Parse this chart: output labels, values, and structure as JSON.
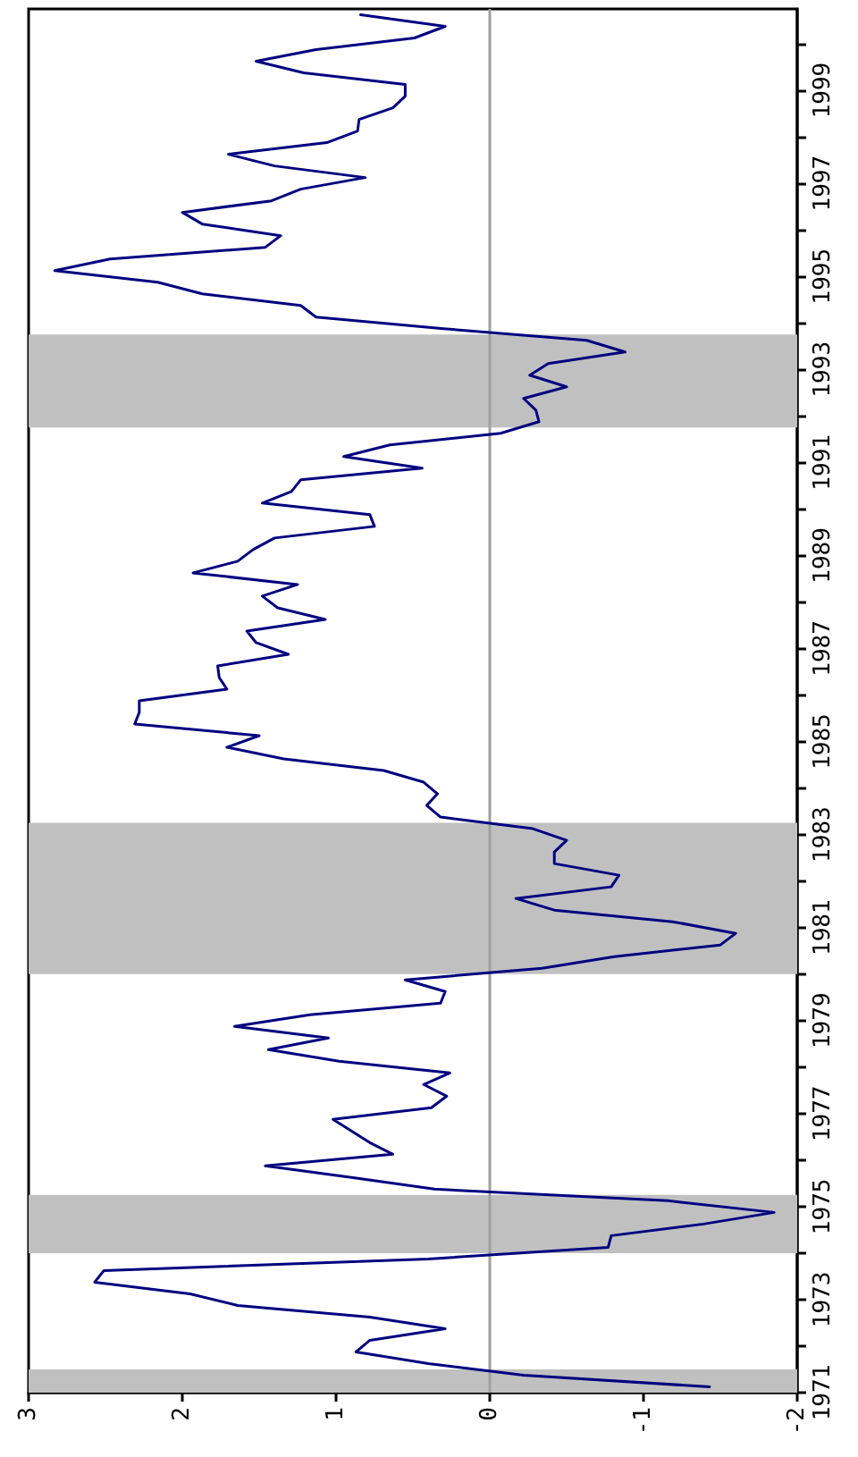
{
  "chart_data": {
    "type": "line",
    "series": [
      {
        "color": "#000080",
        "x": [
          -1.43,
          -0.22,
          0.4,
          0.87,
          0.78,
          0.29,
          0.78,
          1.64,
          1.95,
          2.57,
          2.51,
          0.4,
          -0.77,
          -0.79,
          -1.39,
          -1.85,
          -1.16,
          0.36,
          0.9,
          1.46,
          0.63,
          0.78,
          0.9,
          1.02,
          0.38,
          0.28,
          0.43,
          0.26,
          0.98,
          1.44,
          1.05,
          1.66,
          1.17,
          0.32,
          0.29,
          0.55,
          -0.34,
          -0.81,
          -1.5,
          -1.6,
          -1.19,
          -0.42,
          -0.17,
          -0.79,
          -0.84,
          -0.42,
          -0.42,
          -0.5,
          -0.28,
          0.32,
          0.41,
          0.34,
          0.43,
          0.69,
          1.34,
          1.71,
          1.5,
          2.31,
          2.28,
          2.28,
          1.71,
          1.76,
          1.77,
          1.31,
          1.52,
          1.58,
          1.07,
          1.38,
          1.48,
          1.25,
          1.93,
          1.64,
          1.54,
          1.4,
          0.75,
          0.78,
          1.48,
          1.29,
          1.23,
          0.44,
          0.95,
          0.65,
          -0.07,
          -0.32,
          -0.3,
          -0.22,
          -0.5,
          -0.26,
          -0.38,
          -0.88,
          -0.63,
          0.3,
          1.13,
          1.23,
          1.87,
          2.16,
          2.83,
          2.47,
          1.46,
          1.36,
          1.87,
          2.0,
          1.42,
          1.23,
          0.81,
          1.4,
          1.7,
          1.06,
          0.86,
          0.85,
          0.63,
          0.55,
          0.55,
          1.21,
          1.52,
          1.13,
          0.49,
          0.29,
          0.84
        ],
        "values": [
          1971.125,
          1971.375,
          1971.625,
          1971.875,
          1972.125,
          1972.375,
          1972.625,
          1972.875,
          1973.125,
          1973.375,
          1973.625,
          1973.875,
          1974.125,
          1974.375,
          1974.625,
          1974.875,
          1975.125,
          1975.375,
          1975.625,
          1975.875,
          1976.125,
          1976.375,
          1976.625,
          1976.875,
          1977.125,
          1977.375,
          1977.625,
          1977.875,
          1978.125,
          1978.375,
          1978.625,
          1978.875,
          1979.125,
          1979.375,
          1979.625,
          1979.875,
          1980.125,
          1980.375,
          1980.625,
          1980.875,
          1981.125,
          1981.375,
          1981.625,
          1981.875,
          1982.125,
          1982.375,
          1982.625,
          1982.875,
          1983.125,
          1983.375,
          1983.625,
          1983.875,
          1984.125,
          1984.375,
          1984.625,
          1984.875,
          1985.125,
          1985.375,
          1985.625,
          1985.875,
          1986.125,
          1986.375,
          1986.625,
          1986.875,
          1987.125,
          1987.375,
          1987.625,
          1987.875,
          1988.125,
          1988.375,
          1988.625,
          1988.875,
          1989.125,
          1989.375,
          1989.625,
          1989.875,
          1990.125,
          1990.375,
          1990.625,
          1990.875,
          1991.125,
          1991.375,
          1991.625,
          1991.875,
          1992.125,
          1992.375,
          1992.625,
          1992.875,
          1993.125,
          1993.375,
          1993.625,
          1993.875,
          1994.125,
          1994.375,
          1994.625,
          1994.875,
          1995.125,
          1995.375,
          1995.625,
          1995.875,
          1996.125,
          1996.375,
          1996.625,
          1996.875,
          1997.125,
          1997.375,
          1997.625,
          1997.875,
          1998.125,
          1998.375,
          1998.625,
          1998.875,
          1999.125,
          1999.375,
          1999.625,
          1999.875,
          2000.125,
          2000.375,
          2000.625
        ]
      }
    ],
    "xlim": [
      3,
      -2
    ],
    "xticks": [
      3,
      2,
      1,
      0,
      -1,
      -2
    ],
    "ylim": [
      1971,
      2000.75
    ],
    "yticks": [
      1971,
      {
        "value": 1972,
        "label": null
      },
      1973,
      {
        "value": 1974,
        "label": null
      },
      1975,
      {
        "value": 1976,
        "label": null
      },
      1977,
      {
        "value": 1978,
        "label": null
      },
      1979,
      {
        "value": 1980,
        "label": null
      },
      1981,
      {
        "value": 1982,
        "label": null
      },
      1983,
      {
        "value": 1984,
        "label": null
      },
      1985,
      {
        "value": 1986,
        "label": null
      },
      1987,
      {
        "value": 1988,
        "label": null
      },
      1989,
      {
        "value": 1990,
        "label": null
      },
      1991,
      {
        "value": 1992,
        "label": null
      },
      1993,
      {
        "value": 1994,
        "label": null
      },
      1995,
      {
        "value": 1996,
        "label": null
      },
      1997,
      {
        "value": 1998,
        "label": null
      },
      1999,
      {
        "value": 2000,
        "label": null
      }
    ],
    "ref_lines": [
      {
        "axis": "x",
        "value": 0,
        "color": "#a0a0a0"
      }
    ],
    "bands": [
      {
        "axis": "y",
        "from": 1971,
        "to": 1971.5,
        "color": "#c0c0c0"
      },
      {
        "axis": "y",
        "from": 1974,
        "to": 1975.25,
        "color": "#c0c0c0"
      },
      {
        "axis": "y",
        "from": 1980,
        "to": 1983.25,
        "color": "#c0c0c0"
      },
      {
        "axis": "y",
        "from": 1991.75,
        "to": 1993.75,
        "color": "#c0c0c0"
      }
    ]
  }
}
